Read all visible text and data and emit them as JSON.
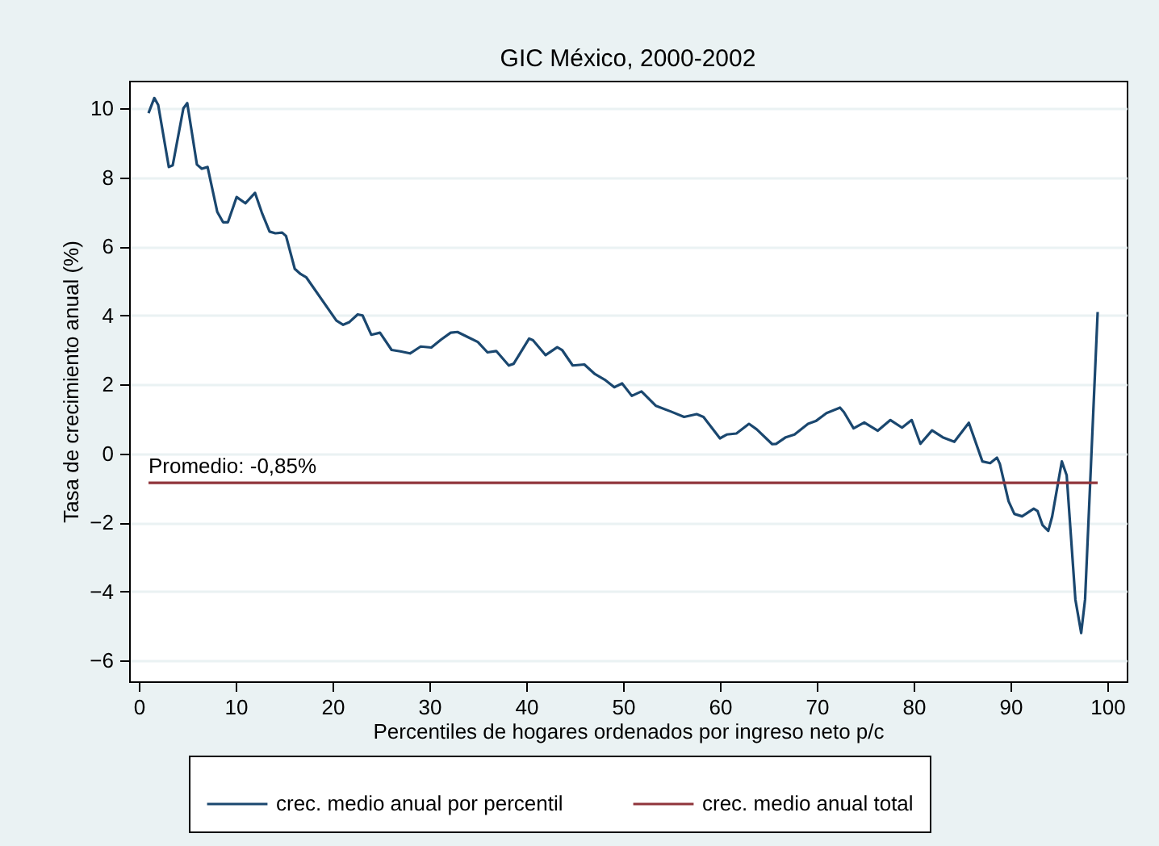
{
  "chart_data": {
    "type": "line",
    "title": "GIC México, 2000-2002",
    "xlabel": "Percentiles de hogares ordenados por ingreso neto p/c",
    "ylabel": "Tasa de crecimiento anual (%)",
    "xlim": [
      -1,
      102
    ],
    "xticks": [
      0,
      10,
      20,
      30,
      40,
      50,
      60,
      70,
      80,
      90,
      100
    ],
    "ylim": [
      -6.6,
      10.8
    ],
    "yticks": [
      -6,
      -4,
      -2,
      0,
      2,
      4,
      6,
      8,
      10
    ],
    "grid": "y",
    "legend": "bottom",
    "line_style": "solid",
    "series": [
      {
        "name": "crec. medio anual por percentil",
        "color": "#1a476f",
        "x": [
          1.0,
          1.6,
          2.0,
          3.1,
          3.5,
          4.6,
          5.0,
          6.0,
          6.5,
          7.1,
          8.1,
          8.7,
          9.2,
          10.1,
          11.0,
          12.0,
          12.7,
          13.5,
          14.1,
          14.8,
          15.2,
          16.1,
          16.7,
          17.3,
          20.4,
          21.1,
          21.7,
          22.6,
          23.1,
          24.0,
          24.9,
          26.1,
          27.0,
          28.0,
          29.1,
          30.2,
          31.2,
          32.2,
          32.9,
          34.0,
          35.0,
          36.0,
          36.9,
          38.2,
          38.7,
          40.3,
          40.7,
          42.0,
          43.2,
          43.7,
          44.8,
          46.0,
          47.1,
          48.1,
          49.1,
          49.9,
          50.9,
          51.9,
          53.4,
          54.9,
          56.3,
          57.6,
          58.3,
          60.0,
          60.7,
          61.7,
          63.0,
          63.8,
          65.4,
          65.8,
          66.8,
          67.7,
          69.1,
          69.9,
          71.0,
          72.4,
          72.8,
          73.8,
          74.9,
          76.3,
          77.6,
          78.8,
          79.8,
          80.7,
          81.9,
          83.0,
          84.2,
          85.7,
          87.1,
          87.9,
          88.6,
          88.9,
          89.8,
          90.4,
          91.2,
          92.4,
          92.8,
          93.3,
          93.9,
          94.3,
          95.3,
          95.8,
          96.7,
          97.3,
          97.7,
          99.0
        ],
        "values": [
          9.86,
          10.3,
          10.1,
          8.3,
          8.35,
          10.0,
          10.15,
          8.37,
          8.25,
          8.3,
          7.0,
          6.7,
          6.7,
          7.43,
          7.25,
          7.55,
          6.98,
          6.43,
          6.38,
          6.4,
          6.3,
          5.35,
          5.2,
          5.1,
          3.85,
          3.73,
          3.8,
          4.03,
          4.0,
          3.44,
          3.5,
          3.0,
          2.96,
          2.9,
          3.1,
          3.07,
          3.3,
          3.5,
          3.52,
          3.37,
          3.23,
          2.93,
          2.97,
          2.55,
          2.6,
          3.33,
          3.28,
          2.85,
          3.08,
          3.0,
          2.55,
          2.58,
          2.3,
          2.14,
          1.92,
          2.03,
          1.67,
          1.8,
          1.38,
          1.22,
          1.06,
          1.14,
          1.06,
          0.44,
          0.55,
          0.58,
          0.86,
          0.7,
          0.27,
          0.28,
          0.47,
          0.55,
          0.86,
          0.94,
          1.17,
          1.33,
          1.2,
          0.73,
          0.9,
          0.66,
          0.97,
          0.75,
          0.97,
          0.28,
          0.67,
          0.47,
          0.34,
          0.89,
          -0.23,
          -0.28,
          -0.12,
          -0.3,
          -1.38,
          -1.75,
          -1.82,
          -1.6,
          -1.67,
          -2.07,
          -2.24,
          -1.83,
          -0.23,
          -0.63,
          -4.23,
          -5.2,
          -4.23,
          4.1
        ]
      },
      {
        "name": "crec. medio anual total",
        "color": "#90353b",
        "x": [
          1,
          99
        ],
        "values": [
          -0.85,
          -0.85
        ]
      }
    ],
    "annotations": [
      {
        "text": "Promedio: -0,85%",
        "x": 1,
        "y": -0.85
      }
    ]
  }
}
